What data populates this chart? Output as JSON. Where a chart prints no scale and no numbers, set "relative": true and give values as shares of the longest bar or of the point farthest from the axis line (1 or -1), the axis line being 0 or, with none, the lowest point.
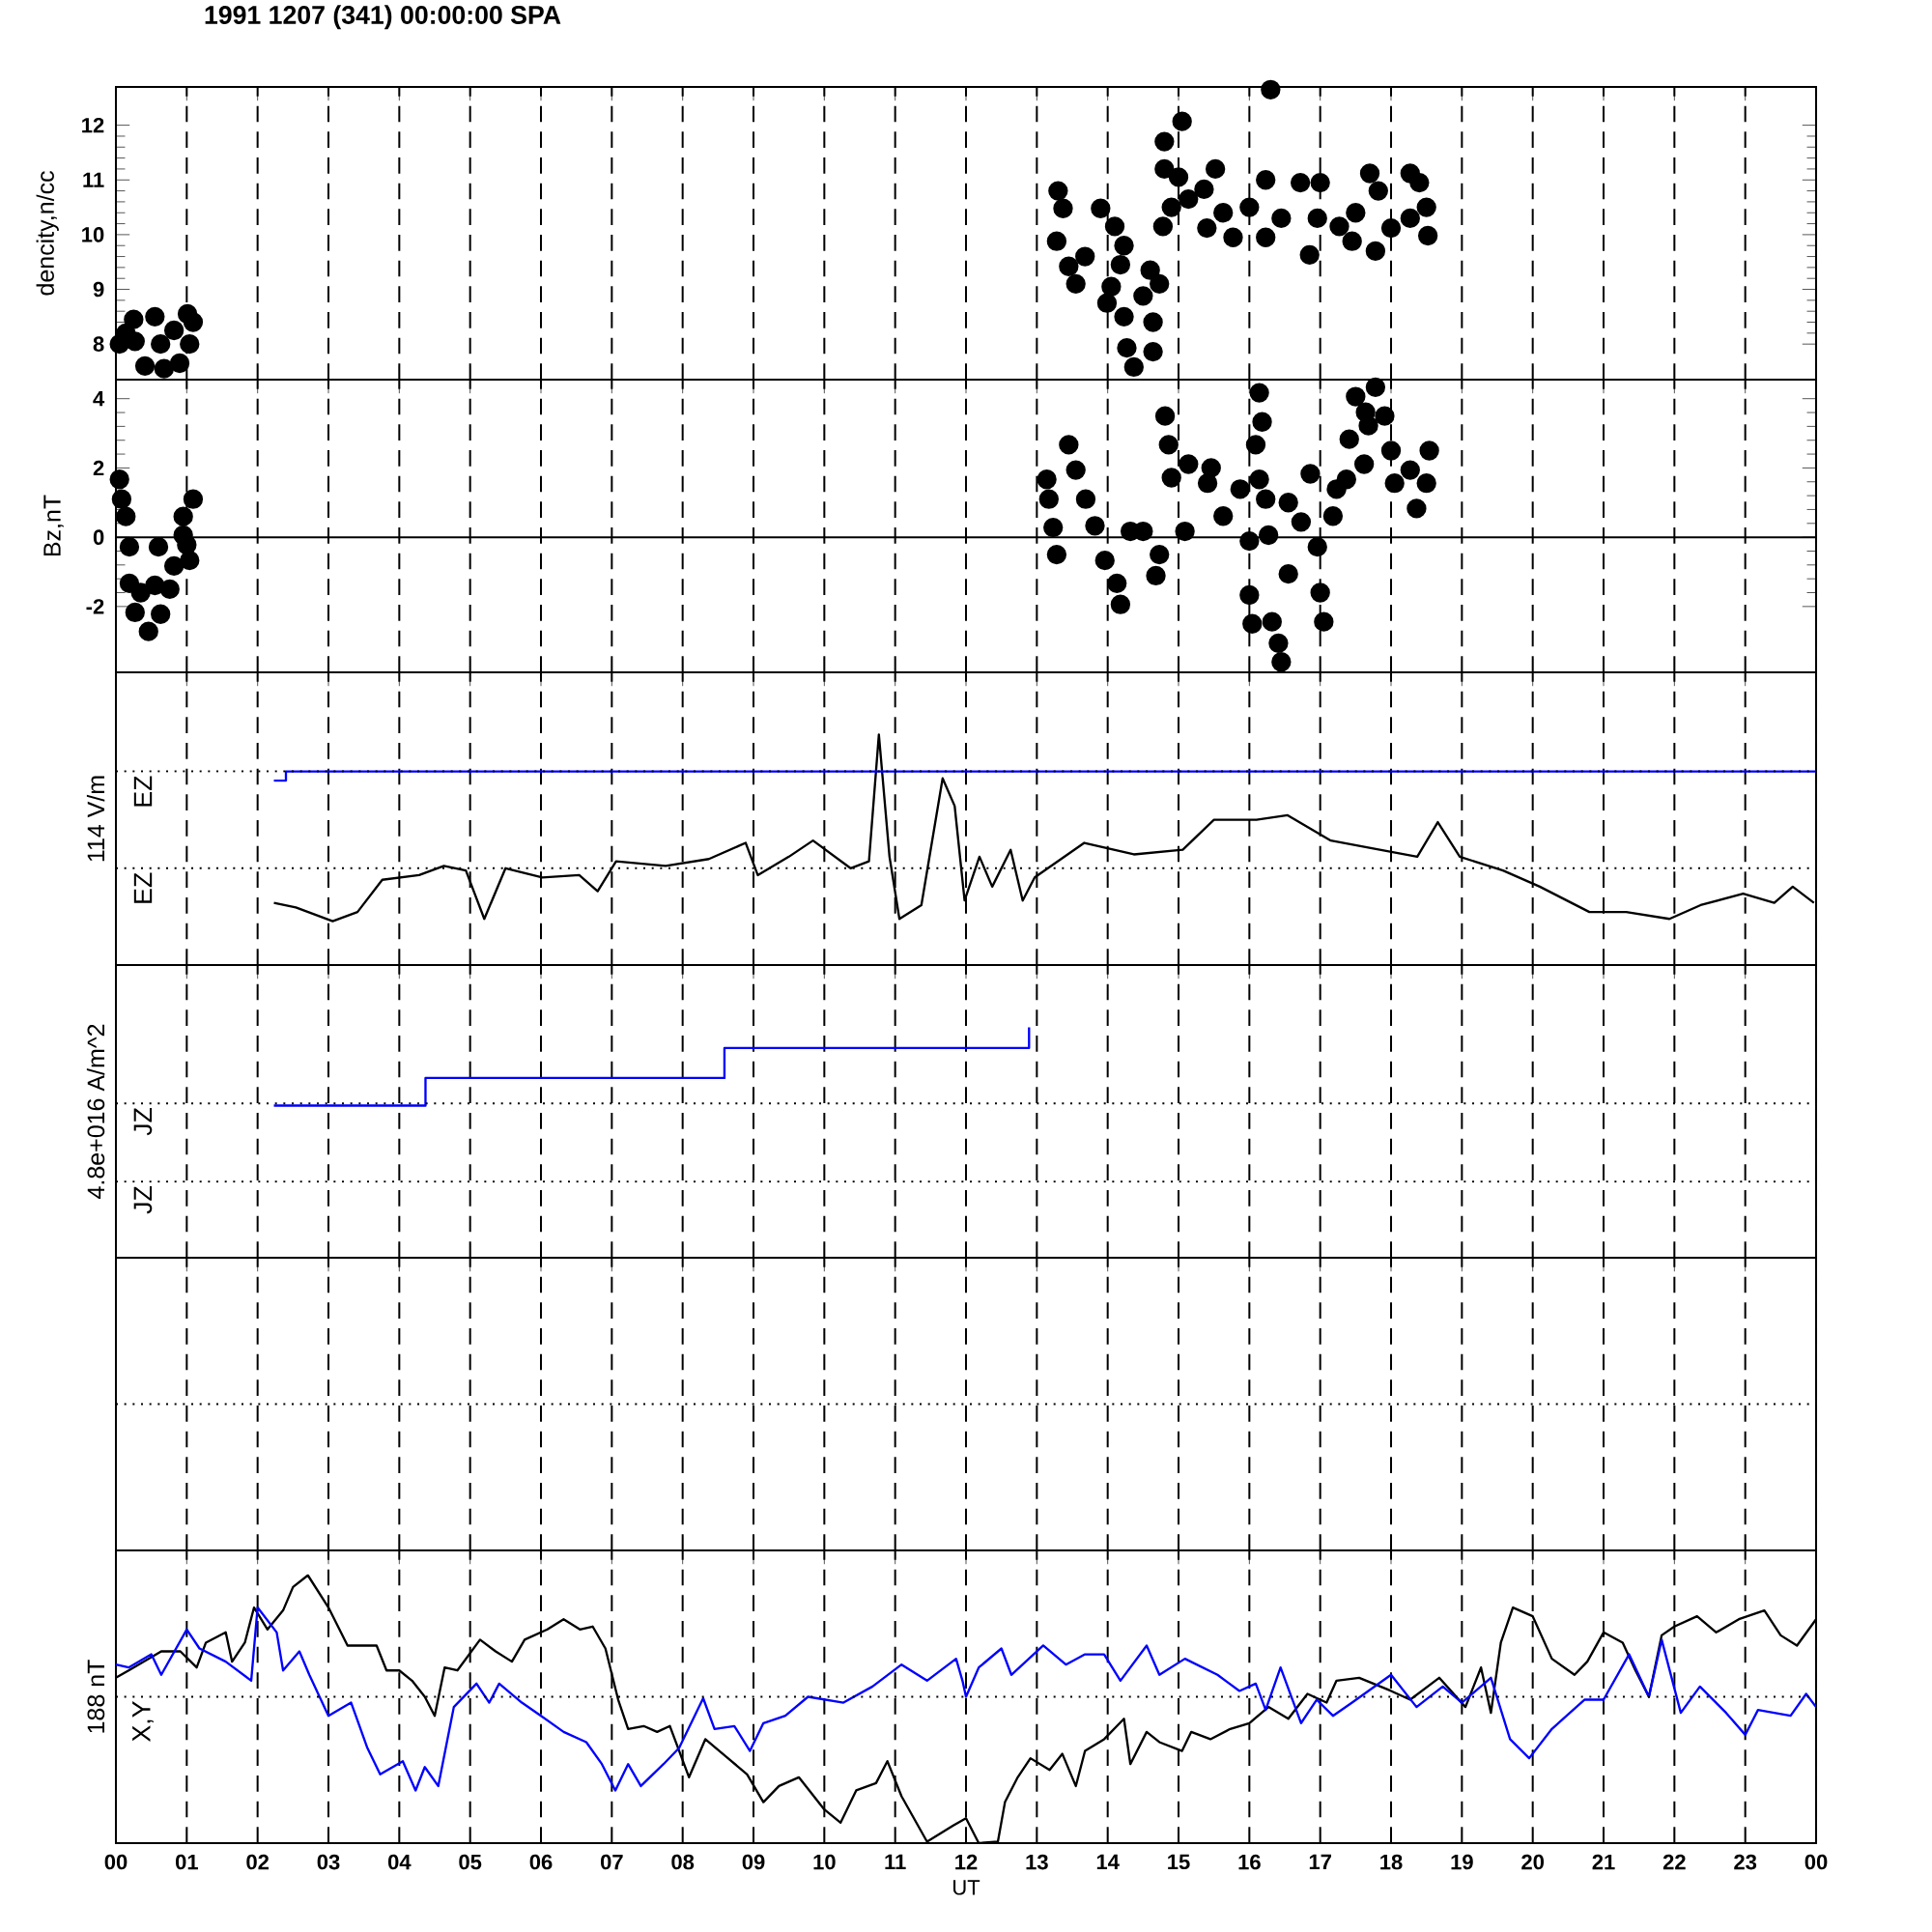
{
  "chart_data": [
    {
      "type": "scatter",
      "title": "1991 1207 (341) 00:00:00 SPA",
      "ylabel": "dencity,n/cc",
      "marker": "circle",
      "color": "#000000",
      "grid": "x",
      "tick_labels": "y",
      "xlim": [
        0,
        24
      ],
      "xticks": [
        0,
        1,
        2,
        3,
        4,
        5,
        6,
        7,
        8,
        9,
        10,
        11,
        12,
        13,
        14,
        15,
        16,
        17,
        18,
        19,
        20,
        21,
        22,
        23,
        24
      ],
      "ylim": [
        7.35,
        12.7
      ],
      "yticks": [
        8,
        9,
        10,
        11,
        12
      ],
      "x": [
        0.05,
        0.14,
        0.25,
        0.27,
        0.41,
        0.55,
        0.63,
        0.68,
        0.82,
        0.9,
        1.01,
        1.04,
        1.09,
        13.28,
        13.3,
        13.37,
        13.45,
        13.55,
        13.68,
        13.9,
        13.99,
        14.05,
        14.1,
        14.18,
        14.23,
        14.23,
        14.27,
        14.37,
        14.5,
        14.6,
        14.64,
        14.64,
        14.73,
        14.78,
        14.8,
        14.8,
        14.9,
        15.0,
        15.05,
        15.14,
        15.36,
        15.4,
        15.52,
        15.63,
        15.77,
        16.0,
        16.23,
        16.23,
        16.3,
        16.45,
        16.72,
        16.85,
        16.96,
        17.0,
        17.27,
        17.45,
        17.5,
        17.7,
        17.78,
        17.82,
        18.0,
        18.27,
        18.27,
        18.4,
        18.5,
        18.52
      ],
      "values": [
        8.0,
        8.2,
        8.45,
        8.05,
        7.6,
        8.5,
        8.0,
        7.55,
        8.25,
        7.65,
        8.55,
        8.0,
        8.4,
        9.88,
        10.8,
        10.48,
        9.42,
        9.1,
        9.6,
        10.48,
        8.75,
        9.05,
        10.15,
        9.45,
        9.8,
        8.5,
        7.93,
        7.58,
        8.88,
        9.35,
        8.4,
        7.86,
        9.1,
        10.15,
        11.7,
        11.2,
        10.5,
        11.05,
        12.07,
        10.65,
        10.83,
        10.12,
        11.2,
        10.4,
        9.95,
        10.5,
        11.0,
        9.95,
        12.65,
        10.3,
        10.95,
        9.63,
        10.3,
        10.95,
        10.15,
        9.88,
        10.4,
        11.12,
        9.7,
        10.8,
        10.12,
        11.12,
        10.3,
        10.95,
        10.5,
        9.98
      ]
    },
    {
      "type": "scatter",
      "ylabel": "Bz,nT",
      "marker": "circle",
      "color": "#000000",
      "grid": "x",
      "tick_labels": "y",
      "xlim": [
        0,
        24
      ],
      "xticks": [
        0,
        1,
        2,
        3,
        4,
        5,
        6,
        7,
        8,
        9,
        10,
        11,
        12,
        13,
        14,
        15,
        16,
        17,
        18,
        19,
        20,
        21,
        22,
        23,
        24
      ],
      "ylim": [
        -3.9,
        4.55
      ],
      "yticks": [
        -2,
        0,
        2,
        4
      ],
      "ref_lines": [
        {
          "axis": "y",
          "value": 0,
          "line_style": "solid"
        }
      ],
      "x": [
        0.05,
        0.08,
        0.14,
        0.19,
        0.19,
        0.27,
        0.35,
        0.46,
        0.55,
        0.6,
        0.63,
        0.76,
        0.82,
        0.95,
        0.95,
        1.0,
        1.04,
        1.09,
        13.14,
        13.17,
        13.23,
        13.28,
        13.45,
        13.55,
        13.69,
        13.82,
        13.96,
        14.13,
        14.18,
        14.32,
        14.5,
        14.68,
        14.73,
        14.81,
        14.86,
        14.9,
        15.09,
        15.14,
        15.41,
        15.46,
        15.63,
        15.87,
        16.0,
        16.0,
        16.04,
        16.09,
        16.14,
        16.14,
        16.18,
        16.23,
        16.27,
        16.32,
        16.41,
        16.45,
        16.55,
        16.55,
        16.73,
        16.86,
        16.96,
        17.0,
        17.05,
        17.18,
        17.23,
        17.37,
        17.41,
        17.5,
        17.62,
        17.64,
        17.68,
        17.78,
        17.91,
        18.0,
        18.05,
        18.27,
        18.36,
        18.5,
        18.54
      ],
      "values": [
        1.67,
        1.1,
        0.6,
        -0.28,
        -1.33,
        -2.17,
        -1.6,
        -2.72,
        -1.39,
        -0.28,
        -2.22,
        -1.5,
        -0.83,
        0.06,
        0.6,
        -0.22,
        -0.67,
        1.1,
        1.67,
        1.1,
        0.28,
        -0.5,
        2.67,
        1.94,
        1.1,
        0.33,
        -0.67,
        -1.33,
        -1.94,
        0.17,
        0.17,
        -1.11,
        -0.5,
        3.5,
        2.67,
        1.72,
        0.17,
        2.11,
        1.56,
        2.0,
        0.61,
        1.39,
        -0.11,
        -1.67,
        -2.5,
        2.67,
        4.17,
        1.67,
        3.33,
        1.1,
        0.06,
        -2.44,
        -3.06,
        -3.6,
        1.0,
        -1.06,
        0.44,
        1.83,
        -0.28,
        -1.6,
        -2.44,
        0.61,
        1.39,
        1.67,
        2.83,
        4.06,
        2.11,
        3.61,
        3.22,
        4.33,
        3.5,
        2.5,
        1.56,
        1.94,
        0.83,
        1.56,
        2.5
      ]
    },
    {
      "type": "line",
      "relative": true,
      "ylabel": "114 V/m",
      "grid": "x",
      "tick_labels": false,
      "xlim": [
        0,
        24
      ],
      "xticks": [
        0,
        1,
        2,
        3,
        4,
        5,
        6,
        7,
        8,
        9,
        10,
        11,
        12,
        13,
        14,
        15,
        16,
        17,
        18,
        19,
        20,
        21,
        22,
        23,
        24
      ],
      "ref_lines": [
        {
          "axis": "y",
          "value": 0.84,
          "label": "EZ",
          "line_style": "dotted"
        },
        {
          "axis": "y",
          "value": 0.42,
          "label": "EZ",
          "line_style": "dotted"
        }
      ],
      "series": [
        {
          "color": "#000000",
          "x": [
            2.23,
            2.54,
            3.06,
            3.41,
            3.76,
            4.28,
            4.63,
            4.94,
            5.2,
            5.5,
            6.02,
            6.54,
            6.8,
            7.06,
            7.76,
            8.37,
            8.89,
            9.06,
            9.5,
            9.84,
            10.37,
            10.63,
            10.77,
            10.92,
            11.06,
            11.37,
            11.67,
            11.84,
            11.98,
            12.19,
            12.37,
            12.63,
            12.8,
            12.97,
            13.67,
            14.37,
            15.06,
            15.5,
            16.1,
            16.54,
            17.15,
            17.84,
            18.37,
            18.66,
            18.97,
            19.58,
            20.1,
            20.8,
            21.32,
            21.93,
            22.37,
            22.97,
            23.41,
            23.67,
            23.97
          ],
          "values": [
            0.27,
            0.25,
            0.19,
            0.23,
            0.37,
            0.39,
            0.43,
            0.41,
            0.2,
            0.42,
            0.38,
            0.39,
            0.32,
            0.45,
            0.43,
            0.46,
            0.53,
            0.39,
            0.47,
            0.54,
            0.42,
            0.45,
            1.0,
            0.47,
            0.2,
            0.26,
            0.81,
            0.69,
            0.28,
            0.47,
            0.34,
            0.5,
            0.28,
            0.38,
            0.53,
            0.48,
            0.5,
            0.63,
            0.63,
            0.65,
            0.54,
            0.5,
            0.47,
            0.62,
            0.47,
            0.41,
            0.34,
            0.23,
            0.23,
            0.2,
            0.26,
            0.31,
            0.27,
            0.34,
            0.27
          ]
        },
        {
          "type": "step",
          "color": "#0000ff",
          "x": [
            2.23,
            2.4,
            24
          ],
          "values": [
            0.8,
            0.84,
            0.84
          ]
        }
      ]
    },
    {
      "type": "step",
      "relative": true,
      "ylabel": "4.8e+016 A/m^2",
      "grid": "x",
      "tick_labels": false,
      "xlim": [
        0,
        24
      ],
      "xticks": [
        0,
        1,
        2,
        3,
        4,
        5,
        6,
        7,
        8,
        9,
        10,
        11,
        12,
        13,
        14,
        15,
        16,
        17,
        18,
        19,
        20,
        21,
        22,
        23,
        24
      ],
      "ref_lines": [
        {
          "axis": "y",
          "value": 0.67,
          "label": "JZ",
          "line_style": "dotted"
        },
        {
          "axis": "y",
          "value": 0.33,
          "label": "JZ",
          "line_style": "dotted"
        }
      ],
      "series": [
        {
          "color": "#0000ff",
          "x": [
            2.23,
            4.37,
            8.59,
            12.89
          ],
          "values": [
            0.66,
            0.78,
            0.91,
            1.0
          ]
        }
      ]
    },
    {
      "type": "other"
    },
    {
      "type": "line",
      "relative": true,
      "ylabel": "188 nT",
      "xlabel": "UT",
      "grid": "x",
      "tick_labels": "x",
      "xlim": [
        0,
        24
      ],
      "xticks": [
        {
          "value": 0,
          "label": "00"
        },
        {
          "value": 1,
          "label": "01"
        },
        {
          "value": 2,
          "label": "02"
        },
        {
          "value": 3,
          "label": "03"
        },
        {
          "value": 4,
          "label": "04"
        },
        {
          "value": 5,
          "label": "05"
        },
        {
          "value": 6,
          "label": "06"
        },
        {
          "value": 7,
          "label": "07"
        },
        {
          "value": 8,
          "label": "08"
        },
        {
          "value": 9,
          "label": "09"
        },
        {
          "value": 10,
          "label": "10"
        },
        {
          "value": 11,
          "label": "11"
        },
        {
          "value": 12,
          "label": "12"
        },
        {
          "value": 13,
          "label": "13"
        },
        {
          "value": 14,
          "label": "14"
        },
        {
          "value": 15,
          "label": "15"
        },
        {
          "value": 16,
          "label": "16"
        },
        {
          "value": 17,
          "label": "17"
        },
        {
          "value": 18,
          "label": "18"
        },
        {
          "value": 19,
          "label": "19"
        },
        {
          "value": 20,
          "label": "20"
        },
        {
          "value": 21,
          "label": "21"
        },
        {
          "value": 22,
          "label": "22"
        },
        {
          "value": 23,
          "label": "23"
        },
        {
          "value": 24,
          "label": "00"
        }
      ],
      "ref_lines": [
        {
          "axis": "y",
          "value": 0,
          "label": "X,Y",
          "line_style": "dotted"
        }
      ],
      "series": [
        {
          "color": "#000000",
          "x": [
            0,
            0.18,
            0.64,
            0.91,
            1.14,
            1.27,
            1.55,
            1.64,
            1.82,
            1.95,
            2.14,
            2.36,
            2.5,
            2.71,
            3.0,
            3.27,
            3.55,
            3.68,
            3.82,
            4.0,
            4.18,
            4.36,
            4.5,
            4.64,
            4.82,
            5.14,
            5.36,
            5.59,
            5.77,
            6.09,
            6.32,
            6.55,
            6.73,
            6.91,
            7.09,
            7.23,
            7.45,
            7.64,
            7.82,
            8.09,
            8.32,
            8.64,
            8.91,
            9.14,
            9.36,
            9.64,
            10.0,
            10.23,
            10.45,
            10.73,
            10.89,
            11.09,
            11.45,
            11.82,
            12.0,
            12.18,
            12.45,
            12.55,
            12.73,
            12.91,
            13.18,
            13.36,
            13.55,
            13.68,
            13.95,
            14.23,
            14.32,
            14.55,
            14.73,
            15.05,
            15.18,
            15.45,
            15.73,
            16.0,
            16.27,
            16.55,
            16.82,
            17.09,
            17.23,
            17.55,
            18.0,
            18.27,
            18.68,
            19.05,
            19.27,
            19.41,
            19.55,
            19.72,
            20.0,
            20.27,
            20.59,
            20.77,
            21.0,
            21.27,
            21.45,
            21.64,
            21.82,
            22.0,
            22.32,
            22.59,
            22.91,
            23.27,
            23.5,
            23.73,
            24.0
          ],
          "values": [
            0.13,
            0.18,
            0.31,
            0.31,
            0.2,
            0.37,
            0.44,
            0.24,
            0.37,
            0.61,
            0.46,
            0.59,
            0.75,
            0.83,
            0.61,
            0.35,
            0.35,
            0.35,
            0.18,
            0.18,
            0.11,
            0,
            -0.13,
            0.2,
            0.18,
            0.39,
            0.31,
            0.24,
            0.39,
            0.46,
            0.53,
            0.46,
            0.48,
            0.33,
            -0.02,
            -0.22,
            -0.2,
            -0.24,
            -0.2,
            -0.55,
            -0.29,
            -0.42,
            -0.53,
            -0.72,
            -0.61,
            -0.55,
            -0.77,
            -0.86,
            -0.64,
            -0.59,
            -0.44,
            -0.68,
            -0.99,
            -0.88,
            -0.83,
            -1.0,
            -0.99,
            -0.72,
            -0.55,
            -0.42,
            -0.5,
            -0.39,
            -0.61,
            -0.37,
            -0.29,
            -0.15,
            -0.46,
            -0.24,
            -0.31,
            -0.37,
            -0.24,
            -0.29,
            -0.22,
            -0.18,
            -0.07,
            -0.15,
            0.02,
            -0.04,
            0.11,
            0.13,
            0.04,
            -0.02,
            0.13,
            -0.07,
            0.2,
            -0.11,
            0.37,
            0.61,
            0.55,
            0.26,
            0.15,
            0.24,
            0.44,
            0.37,
            0.18,
            0,
            0.42,
            0.48,
            0.55,
            0.44,
            0.53,
            0.59,
            0.42,
            0.35,
            0.53
          ]
        },
        {
          "color": "#0000ff",
          "x": [
            0,
            0.18,
            0.5,
            0.64,
            1.0,
            1.18,
            1.55,
            1.91,
            2.0,
            2.27,
            2.36,
            2.59,
            2.73,
            3.0,
            3.32,
            3.55,
            3.73,
            4.05,
            4.23,
            4.36,
            4.55,
            4.77,
            5.09,
            5.27,
            5.41,
            5.73,
            6.0,
            6.32,
            6.64,
            6.86,
            7.05,
            7.23,
            7.41,
            7.73,
            7.95,
            8.29,
            8.45,
            8.73,
            8.95,
            9.14,
            9.45,
            9.77,
            10.27,
            10.68,
            11.09,
            11.45,
            11.86,
            11.95,
            12.0,
            12.18,
            12.5,
            12.64,
            13.09,
            13.41,
            13.68,
            13.95,
            14.18,
            14.55,
            14.73,
            15.09,
            15.55,
            15.86,
            16.09,
            16.23,
            16.44,
            16.73,
            16.95,
            17.18,
            17.45,
            18.0,
            18.36,
            18.73,
            19.0,
            19.41,
            19.68,
            19.95,
            20.27,
            20.73,
            21.0,
            21.36,
            21.64,
            21.82,
            22.09,
            22.36,
            22.73,
            23.0,
            23.18,
            23.64,
            23.86,
            24.0
          ],
          "values": [
            0.22,
            0.2,
            0.29,
            0.15,
            0.46,
            0.33,
            0.24,
            0.11,
            0.61,
            0.44,
            0.18,
            0.31,
            0.15,
            -0.13,
            -0.04,
            -0.35,
            -0.53,
            -0.44,
            -0.64,
            -0.48,
            -0.61,
            -0.07,
            0.09,
            -0.04,
            0.09,
            -0.04,
            -0.13,
            -0.24,
            -0.31,
            -0.46,
            -0.64,
            -0.46,
            -0.61,
            -0.46,
            -0.35,
            -0.01,
            -0.22,
            -0.2,
            -0.37,
            -0.18,
            -0.13,
            0,
            -0.04,
            0.07,
            0.22,
            0.11,
            0.26,
            0.11,
            0,
            0.2,
            0.33,
            0.15,
            0.35,
            0.22,
            0.29,
            0.29,
            0.11,
            0.35,
            0.15,
            0.26,
            0.15,
            0.04,
            0.09,
            -0.09,
            0.2,
            -0.18,
            -0.02,
            -0.13,
            -0.04,
            0.15,
            -0.07,
            0.07,
            -0.04,
            0.13,
            -0.29,
            -0.42,
            -0.22,
            -0.02,
            -0.02,
            0.29,
            0,
            0.39,
            -0.11,
            0.07,
            -0.11,
            -0.26,
            -0.09,
            -0.13,
            0.02,
            -0.07
          ]
        }
      ]
    }
  ]
}
